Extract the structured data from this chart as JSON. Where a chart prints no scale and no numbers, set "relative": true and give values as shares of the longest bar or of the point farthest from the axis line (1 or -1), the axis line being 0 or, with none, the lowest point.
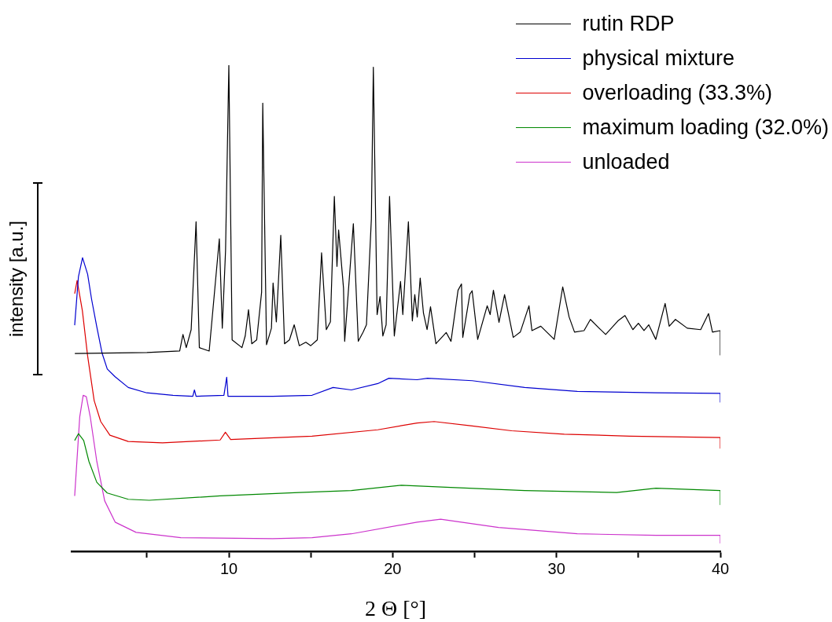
{
  "chart_data": {
    "type": "line",
    "relative": true,
    "xlabel": "2 Θ [°]",
    "ylabel": "intensity [a.u.]",
    "xlim": [
      0.4,
      40
    ],
    "xticks": [
      {
        "value": 5,
        "label": null
      },
      10,
      {
        "value": 15,
        "label": null
      },
      20,
      {
        "value": 25,
        "label": null
      },
      30,
      {
        "value": 35,
        "label": null
      },
      40
    ],
    "grid": false,
    "legend": "top right",
    "tick_labels": "x",
    "marker": "none",
    "line_style": "solid",
    "series": [
      {
        "name": "rutin RDP",
        "color": "#000000",
        "x": [
          0.6,
          5,
          7,
          7.2,
          7.4,
          7.7,
          8.0,
          8.2,
          8.8,
          9.42,
          9.6,
          9.8,
          10.0,
          10.2,
          10.8,
          11.0,
          11.2,
          11.4,
          11.7,
          12.0,
          12.07,
          12.3,
          12.6,
          12.7,
          12.9,
          13.17,
          13.4,
          13.7,
          13.99,
          14.3,
          14.7,
          15.0,
          15.4,
          15.66,
          15.95,
          16.2,
          16.44,
          16.6,
          16.7,
          17.0,
          17.07,
          17.6,
          17.9,
          18.2,
          18.4,
          18.7,
          18.82,
          19.05,
          19.23,
          19.4,
          19.6,
          19.81,
          20.1,
          20.48,
          20.62,
          20.96,
          21.2,
          21.35,
          21.5,
          21.68,
          21.88,
          22.1,
          22.31,
          22.64,
          23.27,
          23.56,
          23.99,
          24.2,
          24.28,
          24.71,
          24.85,
          25.19,
          25.77,
          25.95,
          26.15,
          26.49,
          26.83,
          27.36,
          27.79,
          28.32,
          28.5,
          29.04,
          29.86,
          30.38,
          30.77,
          31.1,
          31.68,
          32.07,
          32.6,
          33.0,
          33.75,
          34.18,
          34.66,
          35.0,
          35.34,
          35.63,
          36.06,
          36.63,
          36.88,
          37.26,
          37.98,
          38.8,
          39.28,
          39.52,
          40,
          40
        ],
        "values": [
          0.407,
          0.409,
          0.412,
          0.446,
          0.419,
          0.456,
          0.678,
          0.419,
          0.412,
          0.643,
          0.459,
          0.619,
          1.0,
          0.435,
          0.419,
          0.443,
          0.497,
          0.427,
          0.435,
          0.533,
          0.922,
          0.425,
          0.459,
          0.552,
          0.472,
          0.65,
          0.427,
          0.435,
          0.466,
          0.423,
          0.43,
          0.423,
          0.435,
          0.614,
          0.456,
          0.472,
          0.73,
          0.586,
          0.661,
          0.541,
          0.432,
          0.674,
          0.432,
          0.451,
          0.466,
          0.684,
          0.996,
          0.487,
          0.524,
          0.443,
          0.466,
          0.73,
          0.443,
          0.555,
          0.487,
          0.678,
          0.474,
          0.528,
          0.482,
          0.562,
          0.49,
          0.456,
          0.503,
          0.427,
          0.45,
          0.432,
          0.537,
          0.55,
          0.44,
          0.529,
          0.536,
          0.436,
          0.505,
          0.487,
          0.537,
          0.471,
          0.528,
          0.44,
          0.451,
          0.505,
          0.454,
          0.463,
          0.436,
          0.544,
          0.482,
          0.451,
          0.454,
          0.477,
          0.459,
          0.446,
          0.474,
          0.485,
          0.456,
          0.469,
          0.454,
          0.466,
          0.436,
          0.51,
          0.463,
          0.477,
          0.459,
          0.456,
          0.489,
          0.451,
          0.454,
          0.404
        ]
      },
      {
        "name": "physical mixture",
        "color": "#0000d0",
        "x": [
          0.59,
          0.82,
          1.07,
          1.38,
          1.62,
          1.94,
          2.26,
          2.58,
          3.06,
          3.86,
          4.99,
          6.59,
          7.8,
          7.9,
          8.0,
          9.7,
          9.87,
          9.95,
          12.68,
          15.08,
          16.36,
          17.48,
          19.09,
          19.77,
          21.49,
          22.13,
          24.86,
          28.06,
          31.27,
          36.07,
          40,
          40
        ],
        "values": [
          0.465,
          0.565,
          0.604,
          0.57,
          0.519,
          0.462,
          0.408,
          0.375,
          0.359,
          0.337,
          0.326,
          0.321,
          0.319,
          0.332,
          0.319,
          0.321,
          0.358,
          0.319,
          0.319,
          0.321,
          0.337,
          0.332,
          0.345,
          0.356,
          0.353,
          0.356,
          0.351,
          0.337,
          0.329,
          0.326,
          0.325,
          0.307
        ]
      },
      {
        "name": "overloading (33.3%)",
        "color": "#dd0000",
        "x": [
          0.59,
          0.74,
          1.06,
          1.38,
          1.78,
          2.18,
          2.74,
          3.86,
          5.95,
          9.47,
          9.79,
          10.11,
          15.08,
          19.09,
          21.49,
          22.53,
          24.86,
          27.26,
          30.47,
          34.47,
          40,
          40
        ],
        "values": [
          0.53,
          0.557,
          0.495,
          0.402,
          0.31,
          0.267,
          0.239,
          0.226,
          0.223,
          0.229,
          0.245,
          0.23,
          0.237,
          0.25,
          0.264,
          0.267,
          0.258,
          0.248,
          0.241,
          0.237,
          0.234,
          0.212
        ]
      },
      {
        "name": "maximum loading (32.0%)",
        "color": "#008800",
        "x": [
          0.59,
          0.82,
          1.14,
          1.46,
          1.94,
          2.58,
          3.86,
          5.14,
          9.47,
          14.28,
          17.48,
          20.53,
          23.25,
          28.06,
          33.67,
          36.07,
          40,
          40
        ],
        "values": [
          0.228,
          0.242,
          0.228,
          0.185,
          0.142,
          0.12,
          0.107,
          0.105,
          0.114,
          0.121,
          0.125,
          0.136,
          0.132,
          0.125,
          0.121,
          0.13,
          0.125,
          0.096
        ]
      },
      {
        "name": "unloaded",
        "color": "#cc33cc",
        "x": [
          0.59,
          0.9,
          1.11,
          1.3,
          1.54,
          1.94,
          2.42,
          3.06,
          4.34,
          7.07,
          12.68,
          15.08,
          17.48,
          21.49,
          22.93,
          26.46,
          31.27,
          36.07,
          40,
          40
        ],
        "values": [
          0.114,
          0.277,
          0.321,
          0.318,
          0.277,
          0.185,
          0.104,
          0.06,
          0.039,
          0.028,
          0.026,
          0.028,
          0.036,
          0.06,
          0.066,
          0.049,
          0.036,
          0.033,
          0.033,
          0.017
        ]
      }
    ]
  }
}
